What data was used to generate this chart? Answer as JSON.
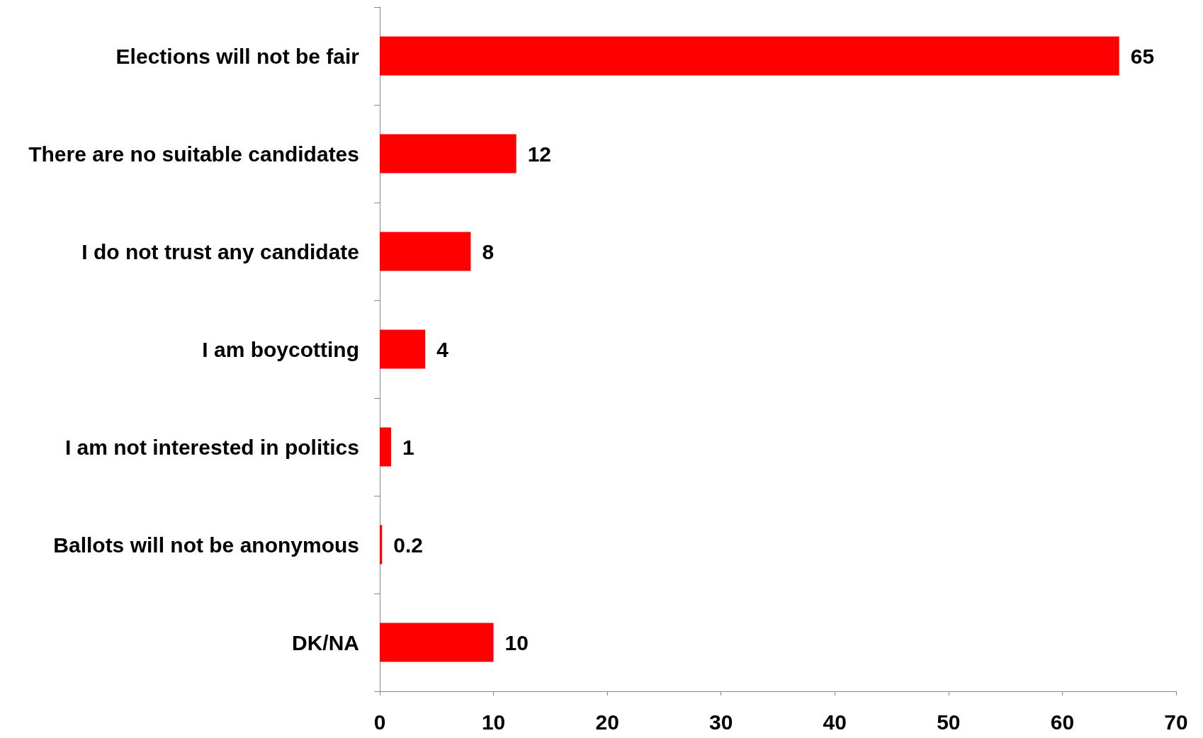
{
  "chart_data": {
    "type": "bar",
    "orientation": "horizontal",
    "categories": [
      "Elections will not be fair",
      "There are no suitable candidates",
      "I do not trust any candidate",
      "I am boycotting",
      "I am not interested in politics",
      "Ballots will not be anonymous",
      "DK/NA"
    ],
    "values": [
      65,
      12,
      8,
      4,
      1,
      0.2,
      10
    ],
    "color": "#ff0000",
    "xlim": [
      0,
      70
    ],
    "xticks": [
      0,
      10,
      20,
      30,
      40,
      50,
      60,
      70
    ],
    "data_labels": true,
    "grid": false
  }
}
